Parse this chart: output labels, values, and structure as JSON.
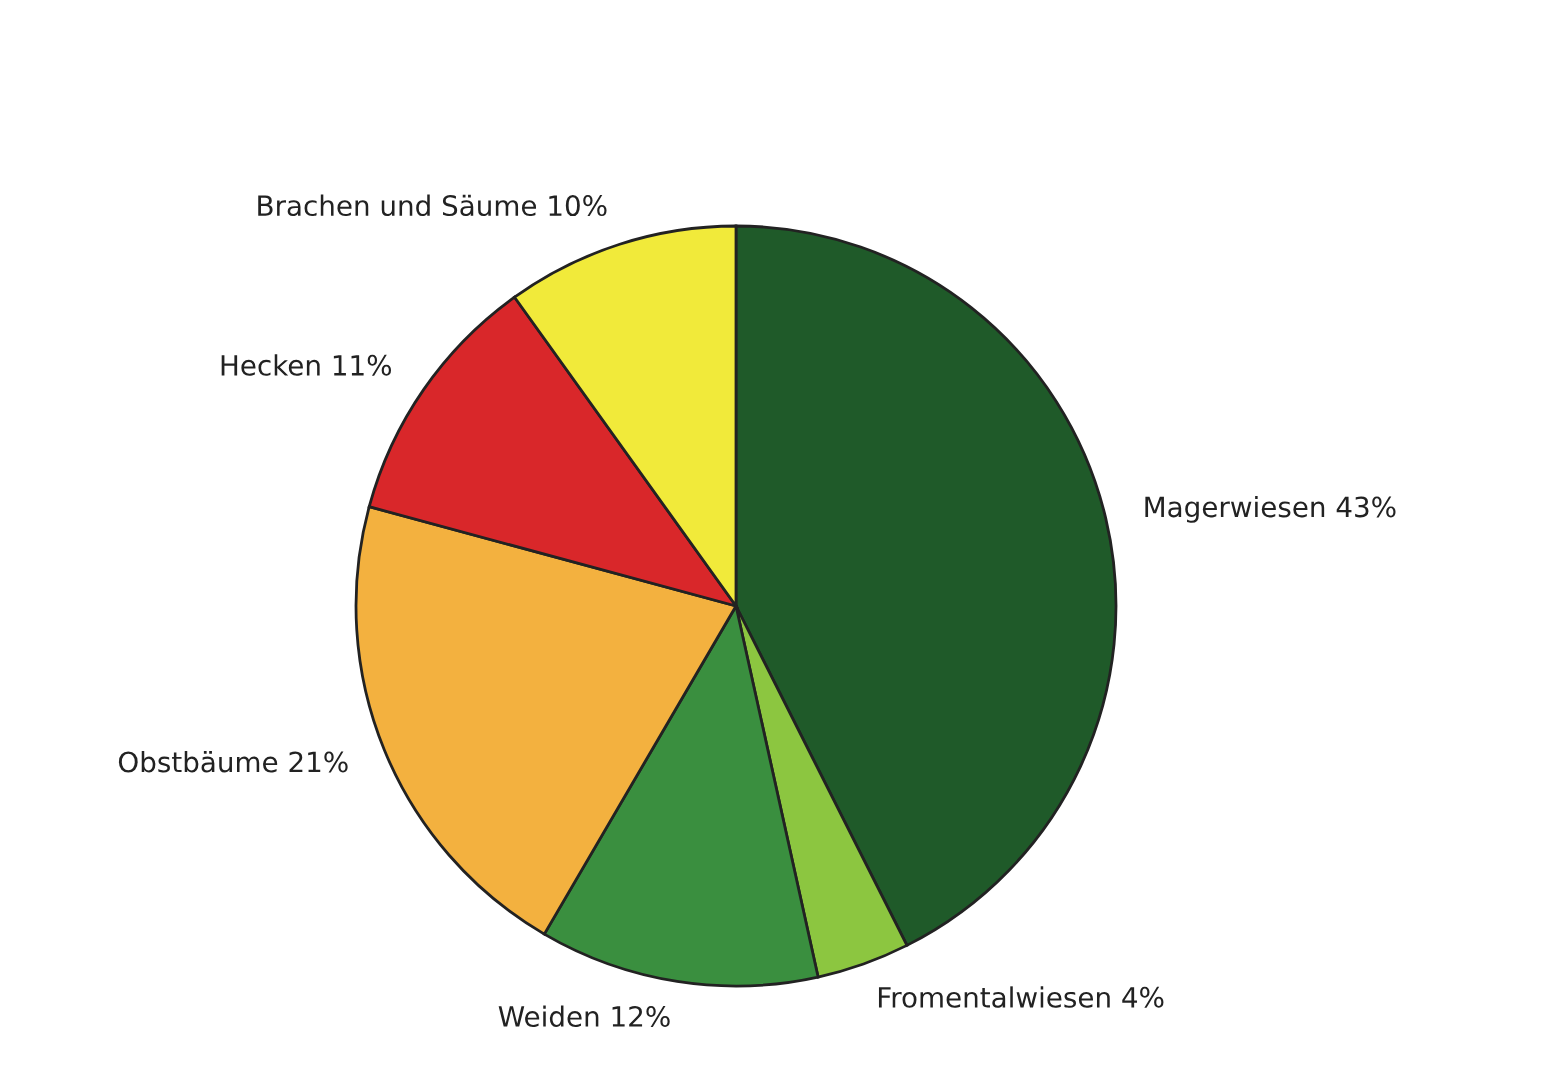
{
  "chart_data": {
    "type": "pie",
    "categories": [
      "Magerwiesen",
      "Fromentalwiesen",
      "Weiden",
      "Obstbäume",
      "Hecken",
      "Brachen und Säume"
    ],
    "values": [
      43,
      4,
      12,
      21,
      11,
      10
    ],
    "value_labels": [
      "43%",
      "4%",
      "12%",
      "21%",
      "11%",
      "10%"
    ],
    "colors": [
      "#1f5a29",
      "#8cc640",
      "#3a8f3f",
      "#f3b13f",
      "#d9272a",
      "#f1ea3a"
    ]
  }
}
